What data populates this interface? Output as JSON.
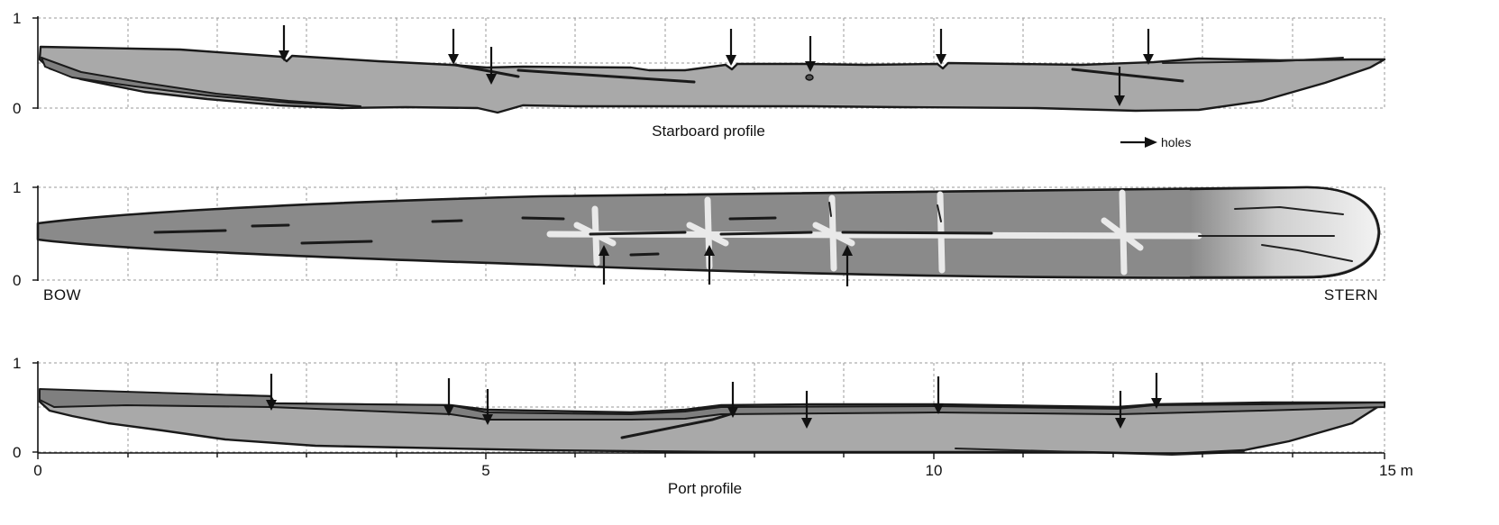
{
  "panels": {
    "starboard": {
      "title": "Starboard profile"
    },
    "plan": {
      "left_label": "BOW",
      "right_label": "STERN"
    },
    "port": {
      "title": "Port profile"
    }
  },
  "y_axis_ticks": [
    "1",
    "0"
  ],
  "x_axis_ticks": [
    "0",
    "5",
    "10",
    "15 m"
  ],
  "legend": {
    "label": "holes"
  },
  "colors": {
    "hull_light": "#a9a9a9",
    "hull_dark": "#7f7f7f",
    "outline": "#1a1a1a",
    "grid": "#9a9a9a"
  }
}
